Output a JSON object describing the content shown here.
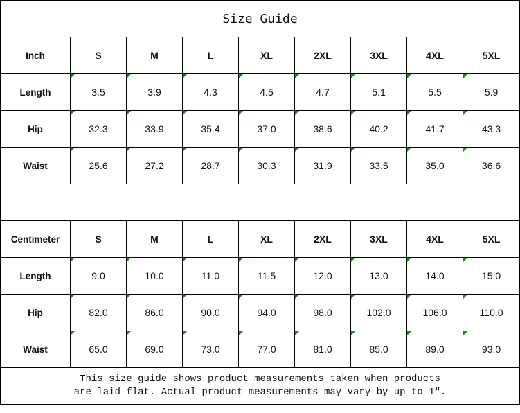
{
  "title": "Size Guide",
  "sizes": [
    "S",
    "M",
    "L",
    "XL",
    "2XL",
    "3XL",
    "4XL",
    "5XL"
  ],
  "tables": [
    {
      "unit": "Inch",
      "rows": [
        {
          "label": "Length",
          "values": [
            "3.5",
            "3.9",
            "4.3",
            "4.5",
            "4.7",
            "5.1",
            "5.5",
            "5.9"
          ]
        },
        {
          "label": "Hip",
          "values": [
            "32.3",
            "33.9",
            "35.4",
            "37.0",
            "38.6",
            "40.2",
            "41.7",
            "43.3"
          ]
        },
        {
          "label": "Waist",
          "values": [
            "25.6",
            "27.2",
            "28.7",
            "30.3",
            "31.9",
            "33.5",
            "35.0",
            "36.6"
          ]
        }
      ]
    },
    {
      "unit": "Centimeter",
      "rows": [
        {
          "label": "Length",
          "values": [
            "9.0",
            "10.0",
            "11.0",
            "11.5",
            "12.0",
            "13.0",
            "14.0",
            "15.0"
          ]
        },
        {
          "label": "Hip",
          "values": [
            "82.0",
            "86.0",
            "90.0",
            "94.0",
            "98.0",
            "102.0",
            "106.0",
            "110.0"
          ]
        },
        {
          "label": "Waist",
          "values": [
            "65.0",
            "69.0",
            "73.0",
            "77.0",
            "81.0",
            "85.0",
            "89.0",
            "93.0"
          ]
        }
      ]
    }
  ],
  "footer": {
    "line1": "This size guide shows product measurements taken when products",
    "line2": "are laid flat. Actual product measurements may vary by up to 1″."
  },
  "colors": {
    "cell_marker": "#1a8a1a",
    "border": "#000000"
  }
}
